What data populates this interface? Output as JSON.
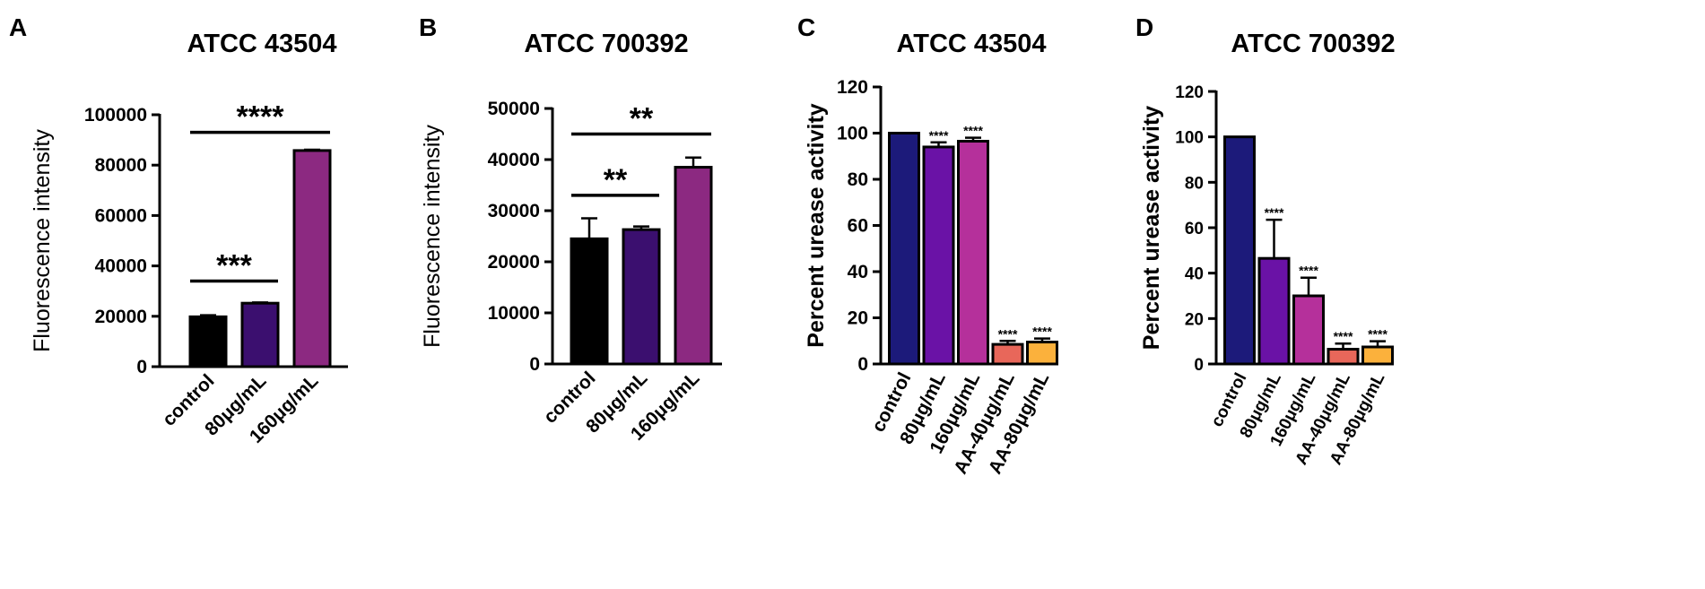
{
  "chart_data": [
    {
      "panel": "A",
      "type": "bar",
      "title": "ATCC 43504",
      "ylabel": "Fluorescence intensity",
      "xlabel": "",
      "ylim": [
        0,
        100000
      ],
      "yticks": [
        0,
        20000,
        40000,
        60000,
        80000,
        100000
      ],
      "ytick_labels": [
        "0",
        "20000",
        "40000",
        "60000",
        "80000",
        "100000"
      ],
      "categories": [
        "control",
        "80μg/mL",
        "160μg/mL"
      ],
      "values": [
        19800,
        25200,
        85800
      ],
      "errors": [
        600,
        300,
        300
      ],
      "colors": [
        "#000000",
        "#3b0f6f",
        "#8c2981"
      ],
      "comparisons": [
        {
          "from": 0,
          "to": 1,
          "label": "***",
          "y": 34000
        },
        {
          "from": 0,
          "to": 2,
          "label": "****",
          "y": 93000
        }
      ]
    },
    {
      "panel": "B",
      "type": "bar",
      "title": "ATCC 700392",
      "ylabel": "Fluorescence intensity",
      "xlabel": "",
      "ylim": [
        0,
        50000
      ],
      "yticks": [
        0,
        10000,
        20000,
        30000,
        40000,
        50000
      ],
      "ytick_labels": [
        "0",
        "10000",
        "20000",
        "30000",
        "40000",
        "50000"
      ],
      "categories": [
        "control",
        "80μg/mL",
        "160μg/mL"
      ],
      "values": [
        24500,
        26300,
        38500
      ],
      "errors": [
        4000,
        600,
        1900
      ],
      "colors": [
        "#000000",
        "#3b0f6f",
        "#8c2981"
      ],
      "comparisons": [
        {
          "from": 0,
          "to": 1,
          "label": "**",
          "y": 33000
        },
        {
          "from": 0,
          "to": 2,
          "label": "**",
          "y": 45000
        }
      ]
    },
    {
      "panel": "C",
      "type": "bar",
      "title": "ATCC 43504",
      "ylabel": "Percent urease activity",
      "xlabel": "",
      "ylim": [
        0,
        120
      ],
      "yticks": [
        0,
        20,
        40,
        60,
        80,
        100,
        120
      ],
      "ytick_labels": [
        "0",
        "20",
        "40",
        "60",
        "80",
        "100",
        "120"
      ],
      "categories": [
        "control",
        "80μg/mL",
        "160μg/mL",
        "AA-40μg/mL",
        "AA-80μg/mL"
      ],
      "values": [
        100,
        94,
        96.5,
        8.5,
        9.5
      ],
      "errors": [
        0,
        2,
        1.5,
        1.5,
        1.5
      ],
      "colors": [
        "#1c1a7a",
        "#6a12a6",
        "#b5309b",
        "#e8675a",
        "#fbb13c"
      ],
      "bar_labels": [
        "",
        "****",
        "****",
        "****",
        "****"
      ]
    },
    {
      "panel": "D",
      "type": "bar",
      "title": "ATCC 700392",
      "ylabel": "Percent urease activity",
      "xlabel": "",
      "ylim": [
        0,
        120
      ],
      "yticks": [
        0,
        20,
        40,
        60,
        80,
        100,
        120
      ],
      "ytick_labels": [
        "0",
        "20",
        "40",
        "60",
        "80",
        "100",
        "120"
      ],
      "categories": [
        "control",
        "80μg/mL",
        "160μg/mL",
        "AA-40μg/mL",
        "AA-80μg/mL"
      ],
      "values": [
        100,
        46.5,
        30,
        6.5,
        7.5
      ],
      "errors": [
        0,
        17,
        8,
        2.5,
        2.5
      ],
      "colors": [
        "#1c1a7a",
        "#6a12a6",
        "#b5309b",
        "#e8675a",
        "#fbb13c"
      ],
      "bar_labels": [
        "",
        "****",
        "****",
        "****",
        "****"
      ]
    }
  ]
}
